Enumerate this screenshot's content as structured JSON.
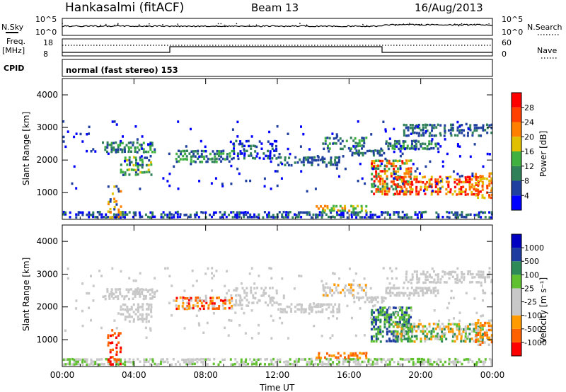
{
  "header": {
    "station": "Hankasalmi (fitACF)",
    "beam": "Beam 13",
    "date": "16/Aug/2013"
  },
  "noise_panel": {
    "left_label": "N.Sky",
    "left_ticks": [
      "10^5",
      "10^0"
    ],
    "right_label": "N.Search",
    "right_ticks": [
      "10^5",
      "10^0"
    ]
  },
  "freq_panel": {
    "left_label_line1": "Freq.",
    "left_label_line2": "[MHz]",
    "left_ticks": [
      "18",
      "8"
    ],
    "right_label": "Nave",
    "right_ticks": [
      "60",
      "0"
    ],
    "cpid_label": "CPID",
    "cpid_text": "normal (fast stereo) 153"
  },
  "colors": {
    "power_scale": [
      "#0000ff",
      "#2040a0",
      "#30805a",
      "#40b040",
      "#e0c000",
      "#ff8000",
      "#ff4000",
      "#ff0000"
    ],
    "velocity_scale": [
      "#ff0000",
      "#ff6000",
      "#ff9a00",
      "#c8c8c8",
      "#c8c8c8",
      "#60c030",
      "#2e8b57",
      "#1e3c9f",
      "#0000c0"
    ]
  },
  "chart_data": [
    {
      "type": "heatmap",
      "panel": "power",
      "ylabel": "Slant Range [km]",
      "yticks": [
        "1000",
        "2000",
        "3000",
        "4000"
      ],
      "ylim": [
        180,
        4500
      ],
      "xlim": [
        0,
        24
      ],
      "colorbar_label": "Power [dB]",
      "colorbar_ticks": [
        "4",
        "8",
        "12",
        "16",
        "20",
        "24",
        "28"
      ]
    },
    {
      "type": "heatmap",
      "panel": "velocity",
      "ylabel": "Slant Range [km]",
      "yticks": [
        "1000",
        "2000",
        "3000",
        "4000"
      ],
      "ylim": [
        180,
        4500
      ],
      "xlim": [
        0,
        24
      ],
      "xlabel": "Time UT",
      "xticks": [
        "00:00",
        "04:00",
        "08:00",
        "12:00",
        "16:00",
        "20:00",
        "00:00"
      ],
      "colorbar_label": "Velocity [m s⁻¹]",
      "colorbar_ticks": [
        "1000",
        "500",
        "100",
        "25",
        "-25",
        "-100",
        "-500",
        "-1000"
      ]
    }
  ]
}
